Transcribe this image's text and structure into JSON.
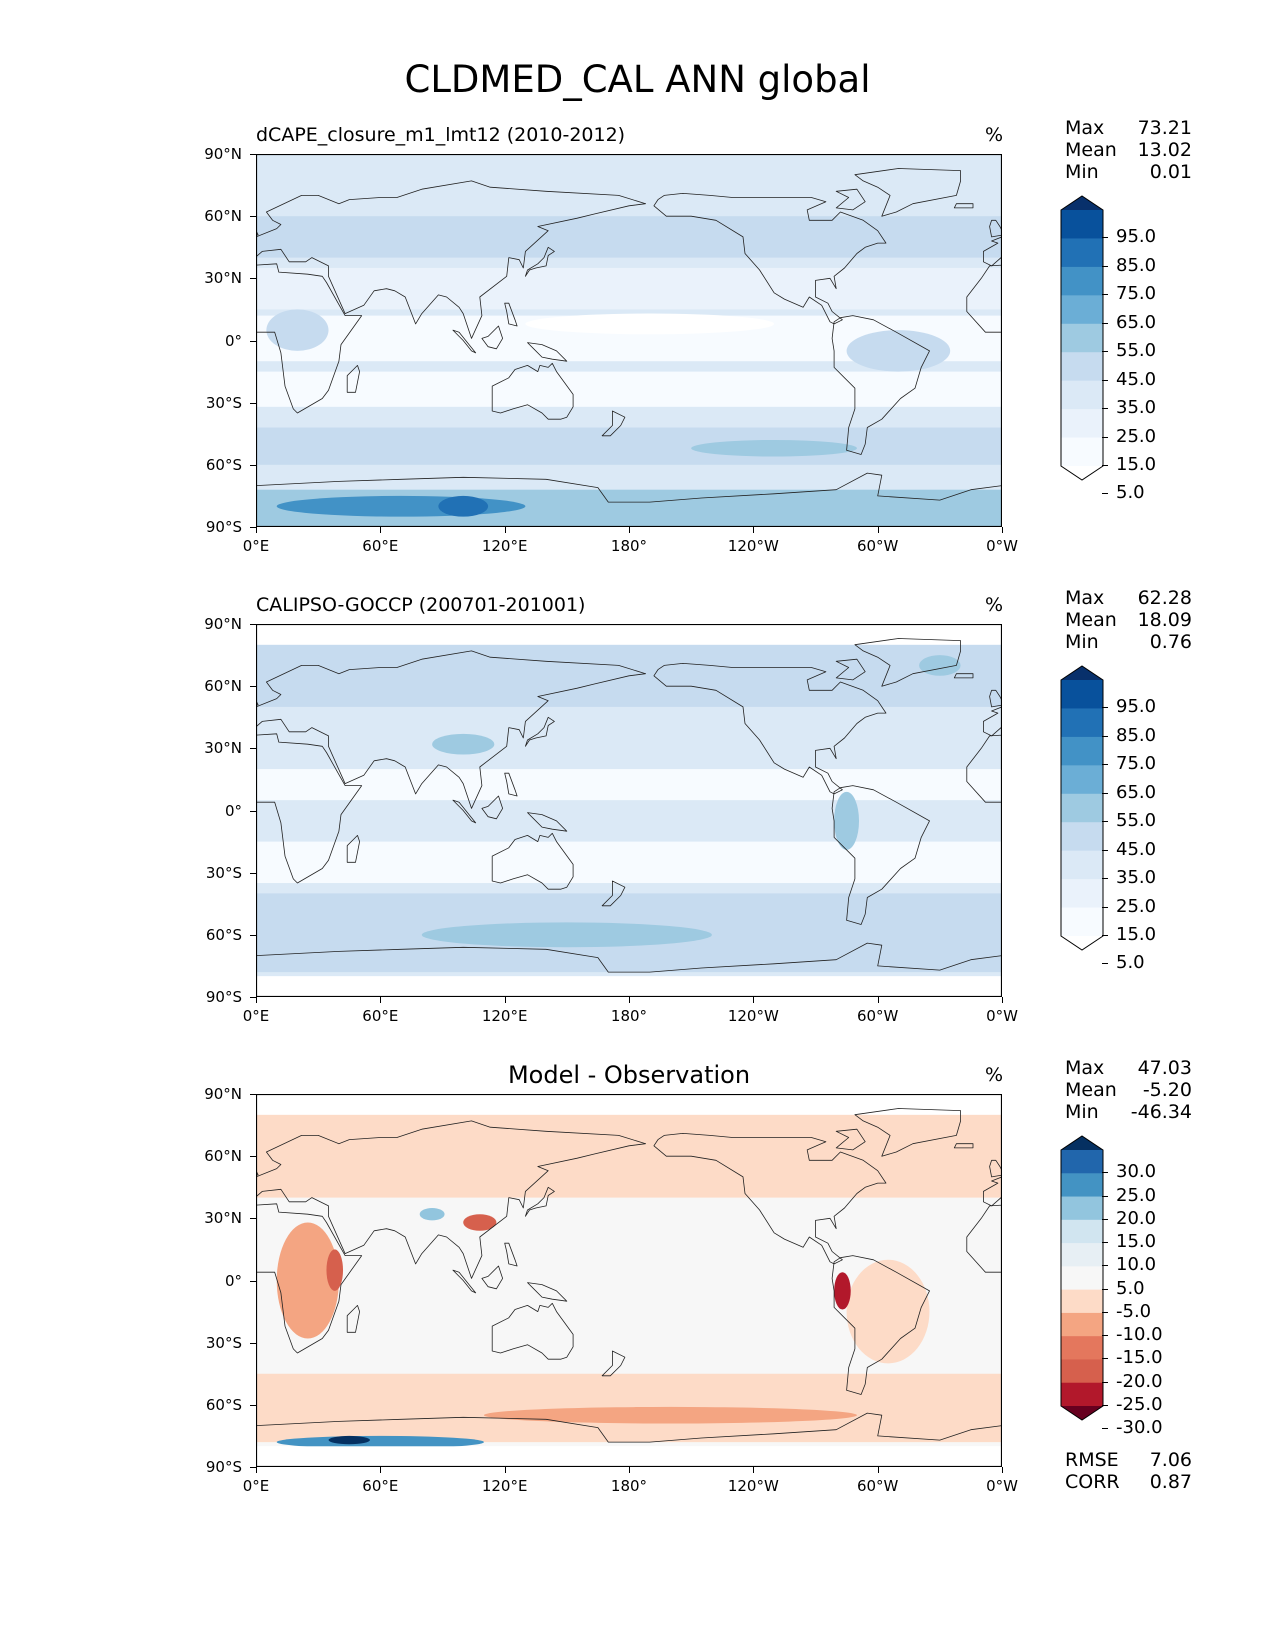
{
  "figure_title": "CLDMED_CAL ANN global",
  "lat_ticks": [
    "90°N",
    "60°N",
    "30°N",
    "0°",
    "30°S",
    "60°S",
    "90°S"
  ],
  "lon_ticks": [
    "0°E",
    "60°E",
    "120°E",
    "180°",
    "120°W",
    "60°W",
    "0°W"
  ],
  "panels": [
    {
      "title": "dCAPE_closure_m1_lmt12 (2010-2012)",
      "units": "%",
      "stats": {
        "max_label": "Max",
        "max": "73.21",
        "mean_label": "Mean",
        "mean": "13.02",
        "min_label": "Min",
        "min": "0.01"
      },
      "colorbar": {
        "labels": [
          "95.0",
          "85.0",
          "75.0",
          "65.0",
          "55.0",
          "45.0",
          "35.0",
          "25.0",
          "15.0",
          "5.0"
        ],
        "colors": [
          "#08306b",
          "#08519c",
          "#2171b5",
          "#4292c6",
          "#6baed6",
          "#9ecae1",
          "#c6dbef",
          "#dbe9f6",
          "#eaf2fb",
          "#f7fbff",
          "#ffffff"
        ]
      }
    },
    {
      "title": "CALIPSO-GOCCP (200701-201001)",
      "units": "%",
      "stats": {
        "max_label": "Max",
        "max": "62.28",
        "mean_label": "Mean",
        "mean": "18.09",
        "min_label": "Min",
        "min": "0.76"
      },
      "colorbar": {
        "labels": [
          "95.0",
          "85.0",
          "75.0",
          "65.0",
          "55.0",
          "45.0",
          "35.0",
          "25.0",
          "15.0",
          "5.0"
        ],
        "colors": [
          "#08306b",
          "#08519c",
          "#2171b5",
          "#4292c6",
          "#6baed6",
          "#9ecae1",
          "#c6dbef",
          "#dbe9f6",
          "#eaf2fb",
          "#f7fbff",
          "#ffffff"
        ]
      }
    },
    {
      "title": "Model - Observation",
      "units": "%",
      "stats": {
        "max_label": "Max",
        "max": "47.03",
        "mean_label": "Mean",
        "mean": "-5.20",
        "min_label": "Min",
        "min": "-46.34",
        "rmse_label": "RMSE",
        "rmse": "7.06",
        "corr_label": "CORR",
        "corr": "0.87"
      },
      "colorbar": {
        "labels": [
          "30.0",
          "25.0",
          "20.0",
          "15.0",
          "10.0",
          "5.0",
          "-5.0",
          "-10.0",
          "-15.0",
          "-20.0",
          "-25.0",
          "-30.0"
        ],
        "colors": [
          "#053061",
          "#2166ac",
          "#4393c3",
          "#92c5de",
          "#d1e5f0",
          "#e7eff4",
          "#f7f7f7",
          "#fddbc7",
          "#f4a582",
          "#e4775d",
          "#d6604d",
          "#b2182b",
          "#67001f"
        ]
      }
    }
  ]
}
